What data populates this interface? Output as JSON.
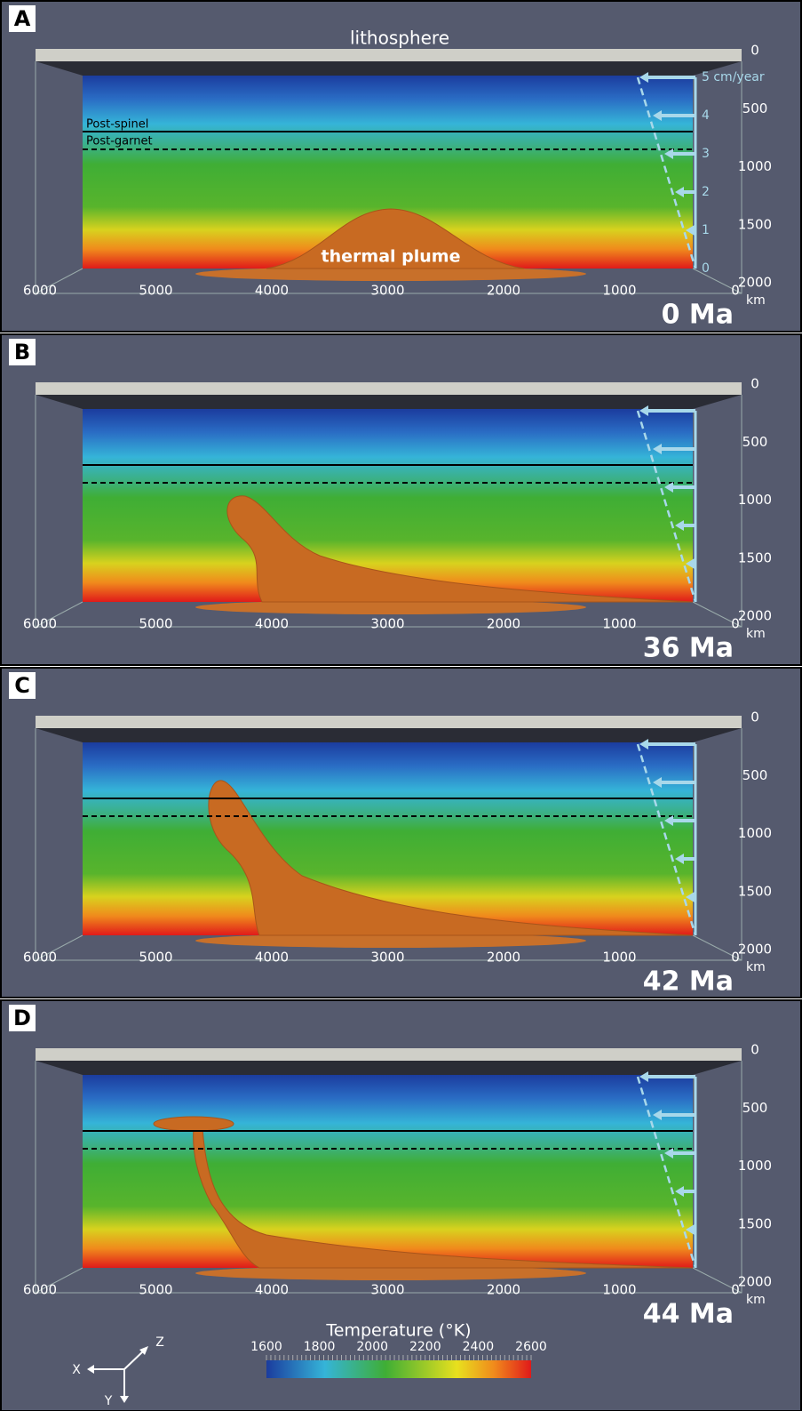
{
  "panels": [
    {
      "label": "A",
      "time": "0 Ma"
    },
    {
      "label": "B",
      "time": "36 Ma"
    },
    {
      "label": "C",
      "time": "42 Ma"
    },
    {
      "label": "D",
      "time": "44 Ma"
    }
  ],
  "x_ticks": [
    6000,
    5000,
    4000,
    3000,
    2000,
    1000,
    0
  ],
  "x_unit": "km",
  "depth_ticks": [
    0,
    500,
    1000,
    1500,
    2000
  ],
  "annotations": {
    "lithosphere": "lithosphere",
    "post_spinel": "Post-spinel",
    "post_garnet": "Post-garnet",
    "thermal_plume": "thermal plume",
    "velocity_labels": [
      "5 cm/year",
      "4",
      "3",
      "2",
      "1",
      "0"
    ]
  },
  "colorbar": {
    "title": "Temperature (°K)",
    "ticks": [
      1600,
      1800,
      2000,
      2200,
      2400,
      2600
    ]
  },
  "axes_triad": {
    "x": "X",
    "y": "Y",
    "z": "Z"
  }
}
